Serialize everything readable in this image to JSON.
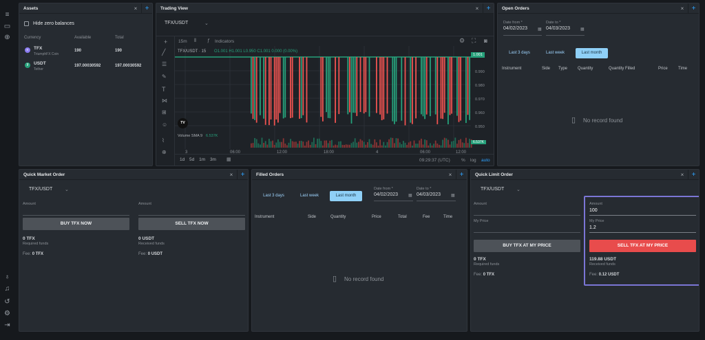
{
  "assets": {
    "title": "Assets",
    "hide_zero": "Hide zero balances",
    "columns": [
      "Currency",
      "Available",
      "Total"
    ],
    "rows": [
      {
        "symbol": "TFX",
        "name": "TriumphFX Coin",
        "available": "190",
        "total": "190"
      },
      {
        "symbol": "USDT",
        "name": "Tether",
        "available": "197.00030592",
        "total": "197.00030592"
      }
    ]
  },
  "trading_view": {
    "title": "Trading View",
    "pair": "TFX/USDT",
    "interval": "15m",
    "indicators": "Indicators",
    "legend": "TFX/USDT · 15",
    "ohlc": "O1.001 H1.001 L0.950 C1.001 0.000 (0.00%)",
    "price_tag": "1.001",
    "price_labels": [
      "0.990",
      "0.980",
      "0.970",
      "0.960",
      "0.950"
    ],
    "volume_label": "Volume SMA 9",
    "volume_value": "6.537K",
    "volume_tag": "6.537K",
    "time_labels": [
      "3",
      "06:00",
      "12:00",
      "18:00",
      "4",
      "06:00",
      "12:00"
    ],
    "ranges": [
      "1d",
      "5d",
      "1m",
      "3m"
    ],
    "clock": "09:29:37 (UTC)",
    "pct": "%",
    "log": "log",
    "auto": "auto",
    "logo": "TV"
  },
  "open_orders": {
    "title": "Open Orders",
    "date_from_label": "Date from *",
    "date_from": "04/02/2023",
    "date_to_label": "Date to *",
    "date_to": "04/03/2023",
    "tabs": [
      "Last 3 days",
      "Last week",
      "Last month"
    ],
    "columns": [
      "Instrument",
      "Side",
      "Type",
      "Quantity",
      "Quantity Filled",
      "Price",
      "Time"
    ],
    "empty": "No record found"
  },
  "quick_market": {
    "title": "Quick Market Order",
    "pair": "TFX/USDT",
    "amount_label": "Amount",
    "buy": "BUY TFX NOW",
    "sell": "SELL TFX NOW",
    "buy_value": "0",
    "buy_unit": "TFX",
    "buy_caption": "Required funds",
    "sell_value": "0",
    "sell_unit": "USDT",
    "sell_caption": "Received funds",
    "fee_label": "Fee:",
    "buy_fee_value": "0",
    "buy_fee_unit": "TFX",
    "sell_fee_value": "0",
    "sell_fee_unit": "USDT"
  },
  "filled_orders": {
    "title": "Filled Orders",
    "tabs": [
      "Last 3 days",
      "Last week",
      "Last month"
    ],
    "date_from_label": "Date from *",
    "date_from": "04/02/2023",
    "date_to_label": "Date to *",
    "date_to": "04/03/2023",
    "columns": [
      "Instrument",
      "Side",
      "Quantity",
      "Price",
      "Total",
      "Fee",
      "Time"
    ],
    "empty": "No record found"
  },
  "quick_limit": {
    "title": "Quick Limit Order",
    "pair": "TFX/USDT",
    "amount_label": "Amount",
    "price_label": "My Price",
    "buy": "BUY TFX AT MY PRICE",
    "sell": "SELL TFX AT MY PRICE",
    "sell_amount": "100",
    "sell_price": "1.2",
    "buy_value": "0",
    "buy_unit": "TFX",
    "buy_caption": "Required funds",
    "sell_value": "119.88",
    "sell_unit": "USDT",
    "sell_caption": "Received funds",
    "fee_label": "Fee:",
    "buy_fee_value": "0",
    "buy_fee_unit": "TFX",
    "sell_fee_value": "0.12",
    "sell_fee_unit": "USDT"
  },
  "common": {
    "close": "×",
    "add": "+"
  },
  "colors": {
    "accent": "#2ea3ff",
    "sell": "#e84c4c",
    "up": "#26a17b",
    "down": "#ef5350",
    "highlight": "#7b76d6"
  }
}
